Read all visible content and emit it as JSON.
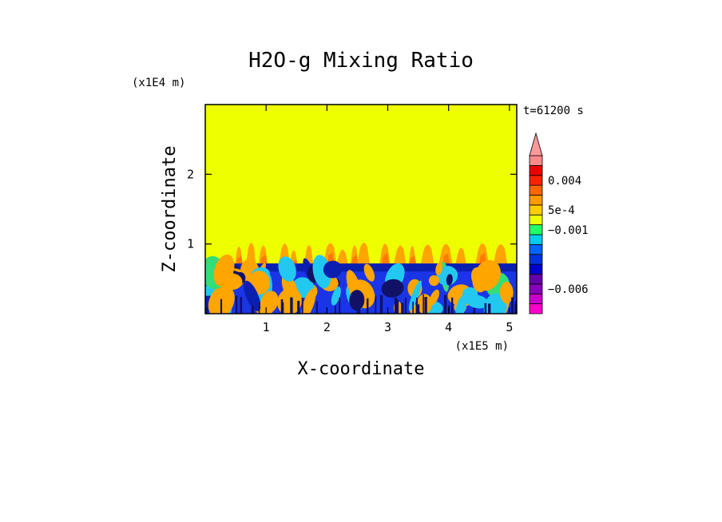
{
  "chart_data": {
    "type": "heatmap",
    "title": "H2O-g Mixing Ratio",
    "xlabel": "X-coordinate",
    "ylabel": "Z-coordinate",
    "x_multiplier": "(x1E5 m)",
    "y_multiplier": "(x1E4 m)",
    "time_label": "t=61200 s",
    "xlim": [
      0,
      5.12
    ],
    "ylim": [
      0,
      3.0
    ],
    "x_ticks": [
      {
        "value": 1,
        "label": "1"
      },
      {
        "value": 2,
        "label": "2"
      },
      {
        "value": 3,
        "label": "3"
      },
      {
        "value": 4,
        "label": "4"
      },
      {
        "value": 5,
        "label": "5"
      }
    ],
    "y_ticks": [
      {
        "value": 1,
        "label": "1"
      },
      {
        "value": 2,
        "label": "2"
      }
    ],
    "background_level_color": "#eeff00",
    "colorbar": {
      "levels": [
        {
          "color": "#ff00cc"
        },
        {
          "color": "#cc00cc"
        },
        {
          "color": "#8800bb"
        },
        {
          "color": "#6600aa"
        },
        {
          "color": "#0000cc"
        },
        {
          "color": "#0033dd"
        },
        {
          "color": "#0066ff"
        },
        {
          "color": "#00ccee"
        },
        {
          "color": "#22ff66"
        },
        {
          "color": "#eeff00"
        },
        {
          "color": "#ffcc00"
        },
        {
          "color": "#ff9900"
        },
        {
          "color": "#ff6600"
        },
        {
          "color": "#ff2200"
        },
        {
          "color": "#ee0000"
        },
        {
          "color": "#ff8888"
        }
      ],
      "extend_top_color": "#ff9999",
      "labels": [
        {
          "text": "0.004",
          "level_index": 13
        },
        {
          "text": "5e-4",
          "level_index": 10
        },
        {
          "text": "−0.001",
          "level_index": 8
        },
        {
          "text": "−0.006",
          "level_index": 2
        }
      ]
    },
    "field_description_colors": {
      "upper": "#eeff00",
      "orange": "#ffa500",
      "dark_orange": "#ff7a00",
      "blue": "#1a35e6",
      "dark_blue": "#0a1fb0",
      "cyan": "#22c8f0",
      "green": "#33dd77",
      "navy": "#111166"
    }
  }
}
